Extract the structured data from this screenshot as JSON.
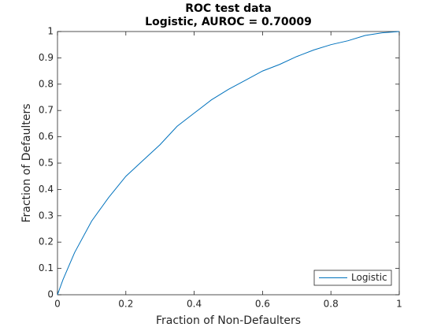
{
  "chart_data": {
    "type": "line",
    "title": "ROC test data",
    "subtitle": "Logistic, AUROC = 0.70009",
    "x_label": "Fraction of Non-Defaulters",
    "y_label": "Fraction of Defaulters",
    "x": [
      0,
      0.016,
      0.05,
      0.1,
      0.15,
      0.2,
      0.25,
      0.3,
      0.35,
      0.4,
      0.45,
      0.5,
      0.55,
      0.6,
      0.65,
      0.7,
      0.75,
      0.8,
      0.85,
      0.9,
      0.95,
      1
    ],
    "series": [
      {
        "name": "Logistic",
        "color": "#0072bd",
        "values": [
          0,
          0.057,
          0.16,
          0.28,
          0.37,
          0.45,
          0.51,
          0.57,
          0.64,
          0.69,
          0.74,
          0.78,
          0.815,
          0.85,
          0.875,
          0.905,
          0.93,
          0.95,
          0.965,
          0.985,
          0.995,
          1
        ]
      }
    ],
    "xlim": [
      0,
      1
    ],
    "ylim": [
      0,
      1
    ],
    "xticks": [
      0,
      0.2,
      0.4,
      0.6,
      0.8,
      1
    ],
    "yticks": [
      0,
      0.1,
      0.2,
      0.3,
      0.4,
      0.5,
      0.6,
      0.7,
      0.8,
      0.9,
      1
    ],
    "grid": false,
    "legend_position": "southeast"
  }
}
